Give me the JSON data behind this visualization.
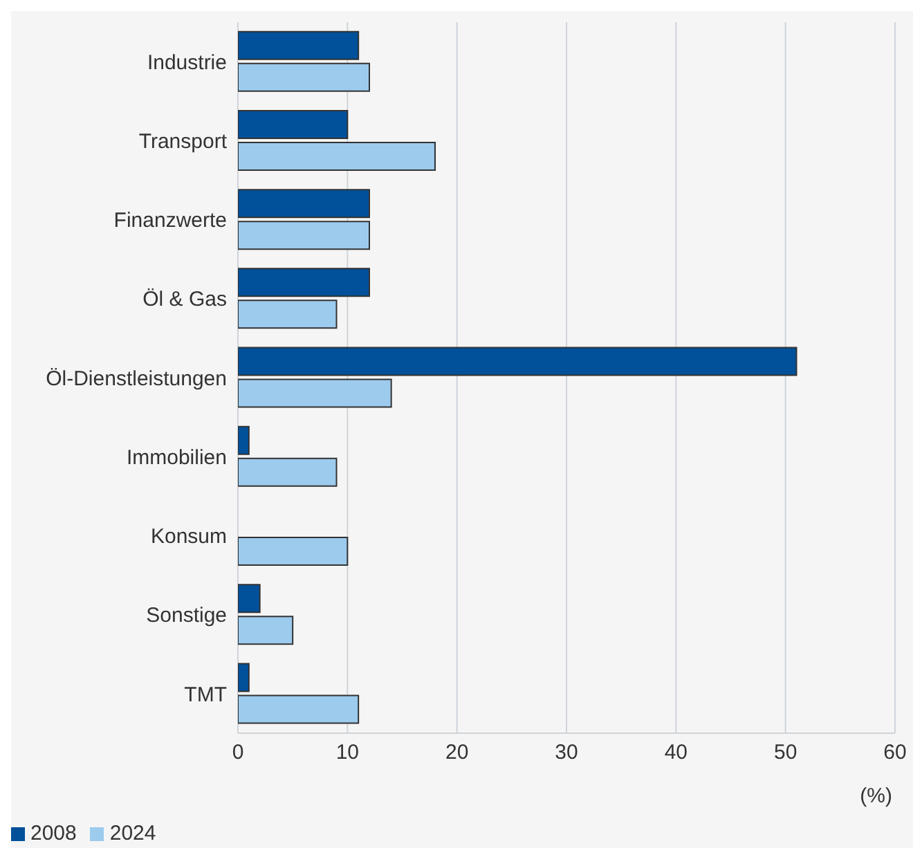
{
  "chart_data": {
    "type": "bar",
    "orientation": "horizontal",
    "xlabel": "(%)",
    "categories": [
      "Industrie",
      "Transport",
      "Finanzwerte",
      "Öl & Gas",
      "Öl-Dienstleistungen",
      "Immobilien",
      "Konsum",
      "Sonstige",
      "TMT"
    ],
    "series": [
      {
        "name": "2008",
        "color": "#00509a",
        "values": [
          11,
          10,
          12,
          12,
          51,
          1,
          0,
          2,
          1
        ]
      },
      {
        "name": "2024",
        "color": "#9ccbee",
        "values": [
          12,
          18,
          12,
          9,
          14,
          9,
          10,
          5,
          11
        ]
      }
    ],
    "xlim": [
      0,
      60
    ],
    "xticks": [
      0,
      10,
      20,
      30,
      40,
      50,
      60
    ],
    "grid": "x",
    "legend": "bottom left"
  }
}
